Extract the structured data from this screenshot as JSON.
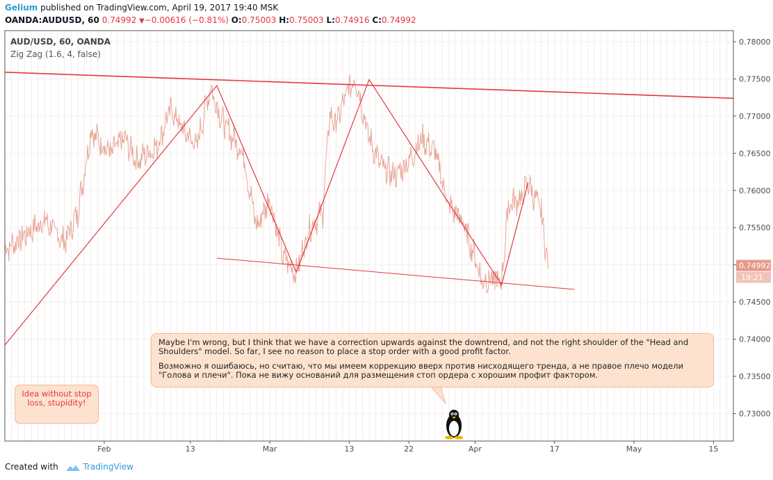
{
  "header": {
    "author": "Gelium",
    "published": " published on TradingView.com, April 19, 2017 19:40 MSK",
    "symbol": "OANDA:AUDUSD, 60",
    "last": "0.74992",
    "change": "−0.00616 (−0.81%)",
    "o_label": "O:",
    "o_value": "0.75003",
    "h_label": "H:",
    "h_value": "0.75003",
    "l_label": "L:",
    "l_value": "0.74916",
    "c_label": "C:",
    "c_value": "0.74992"
  },
  "legend": {
    "title": "AUD/USD, 60, OANDA",
    "indicator": "Zig Zag (1.6, 4, false)"
  },
  "note": {
    "english": "Maybe I'm wrong, but I think that we have a correction upwards against the downtrend, and not the right shoulder of the \"Head and Shoulders\" model. So far, I see no reason to place a stop order with a good profit factor.",
    "russian": "Возможно я ошибаюсь, но считаю, что мы имеем коррекцию вверх против нисходящего тренда, а не правое плечо модели \"Голова и плечи\". Пока не вижу оснований для размещения стоп ордера с хорошим профит фактором."
  },
  "idea_note": "Idea without stop loss, stupidity!",
  "footer": {
    "created_with": "Created with",
    "brand": "TradingView"
  },
  "price_tag": {
    "value": "0.74992",
    "countdown": "19:21"
  },
  "colors": {
    "price_line": "#e8a596",
    "zigzag": "#e2373f",
    "trendline": "#e2373f",
    "accent": "#2e9bd6"
  },
  "chart_data": {
    "type": "line",
    "x_ticks": [
      "Feb",
      "13",
      "Mar",
      "13",
      "22",
      "Apr",
      "17",
      "May",
      "15"
    ],
    "y_ticks": [
      "0.78000",
      "0.77500",
      "0.77000",
      "0.76500",
      "0.76000",
      "0.75500",
      "0.75000",
      "0.74500",
      "0.74000",
      "0.73500",
      "0.73000"
    ],
    "ylim": [
      0.7263,
      0.7815
    ],
    "grid": true,
    "x_tick_index": [
      15,
      28,
      40,
      52,
      61,
      71,
      83,
      95,
      107
    ],
    "xlim": [
      0,
      110
    ],
    "price_keypoints": [
      [
        0,
        0.752
      ],
      [
        3,
        0.754
      ],
      [
        6,
        0.756
      ],
      [
        9,
        0.753
      ],
      [
        11,
        0.757
      ],
      [
        13,
        0.768
      ],
      [
        16,
        0.765
      ],
      [
        18,
        0.767
      ],
      [
        20,
        0.764
      ],
      [
        23,
        0.766
      ],
      [
        25,
        0.771
      ],
      [
        27,
        0.768
      ],
      [
        29,
        0.766
      ],
      [
        31,
        0.774
      ],
      [
        33,
        0.769
      ],
      [
        36,
        0.765
      ],
      [
        38,
        0.755
      ],
      [
        40,
        0.759
      ],
      [
        42,
        0.751
      ],
      [
        44,
        0.749
      ],
      [
        46,
        0.755
      ],
      [
        48,
        0.757
      ],
      [
        49,
        0.77
      ],
      [
        50,
        0.769
      ],
      [
        52,
        0.774
      ],
      [
        53,
        0.775
      ],
      [
        55,
        0.767
      ],
      [
        57,
        0.763
      ],
      [
        59,
        0.762
      ],
      [
        61,
        0.764
      ],
      [
        63,
        0.767
      ],
      [
        65,
        0.765
      ],
      [
        67,
        0.758
      ],
      [
        69,
        0.756
      ],
      [
        71,
        0.751
      ],
      [
        72,
        0.748
      ],
      [
        74,
        0.748
      ],
      [
        75,
        0.7475
      ],
      [
        76,
        0.758
      ],
      [
        78,
        0.759
      ],
      [
        79,
        0.761
      ],
      [
        81,
        0.757
      ],
      [
        82,
        0.7499
      ]
    ],
    "zigzag": [
      [
        0,
        0.7392
      ],
      [
        32,
        0.7741
      ],
      [
        44,
        0.749
      ],
      [
        55,
        0.7749
      ],
      [
        75,
        0.7473
      ],
      [
        79,
        0.761
      ]
    ],
    "resistance_line": [
      [
        0,
        0.7759
      ],
      [
        110,
        0.7724
      ]
    ],
    "support_line": [
      [
        32,
        0.7509
      ],
      [
        86,
        0.7467
      ]
    ],
    "last_price": 0.74992
  }
}
